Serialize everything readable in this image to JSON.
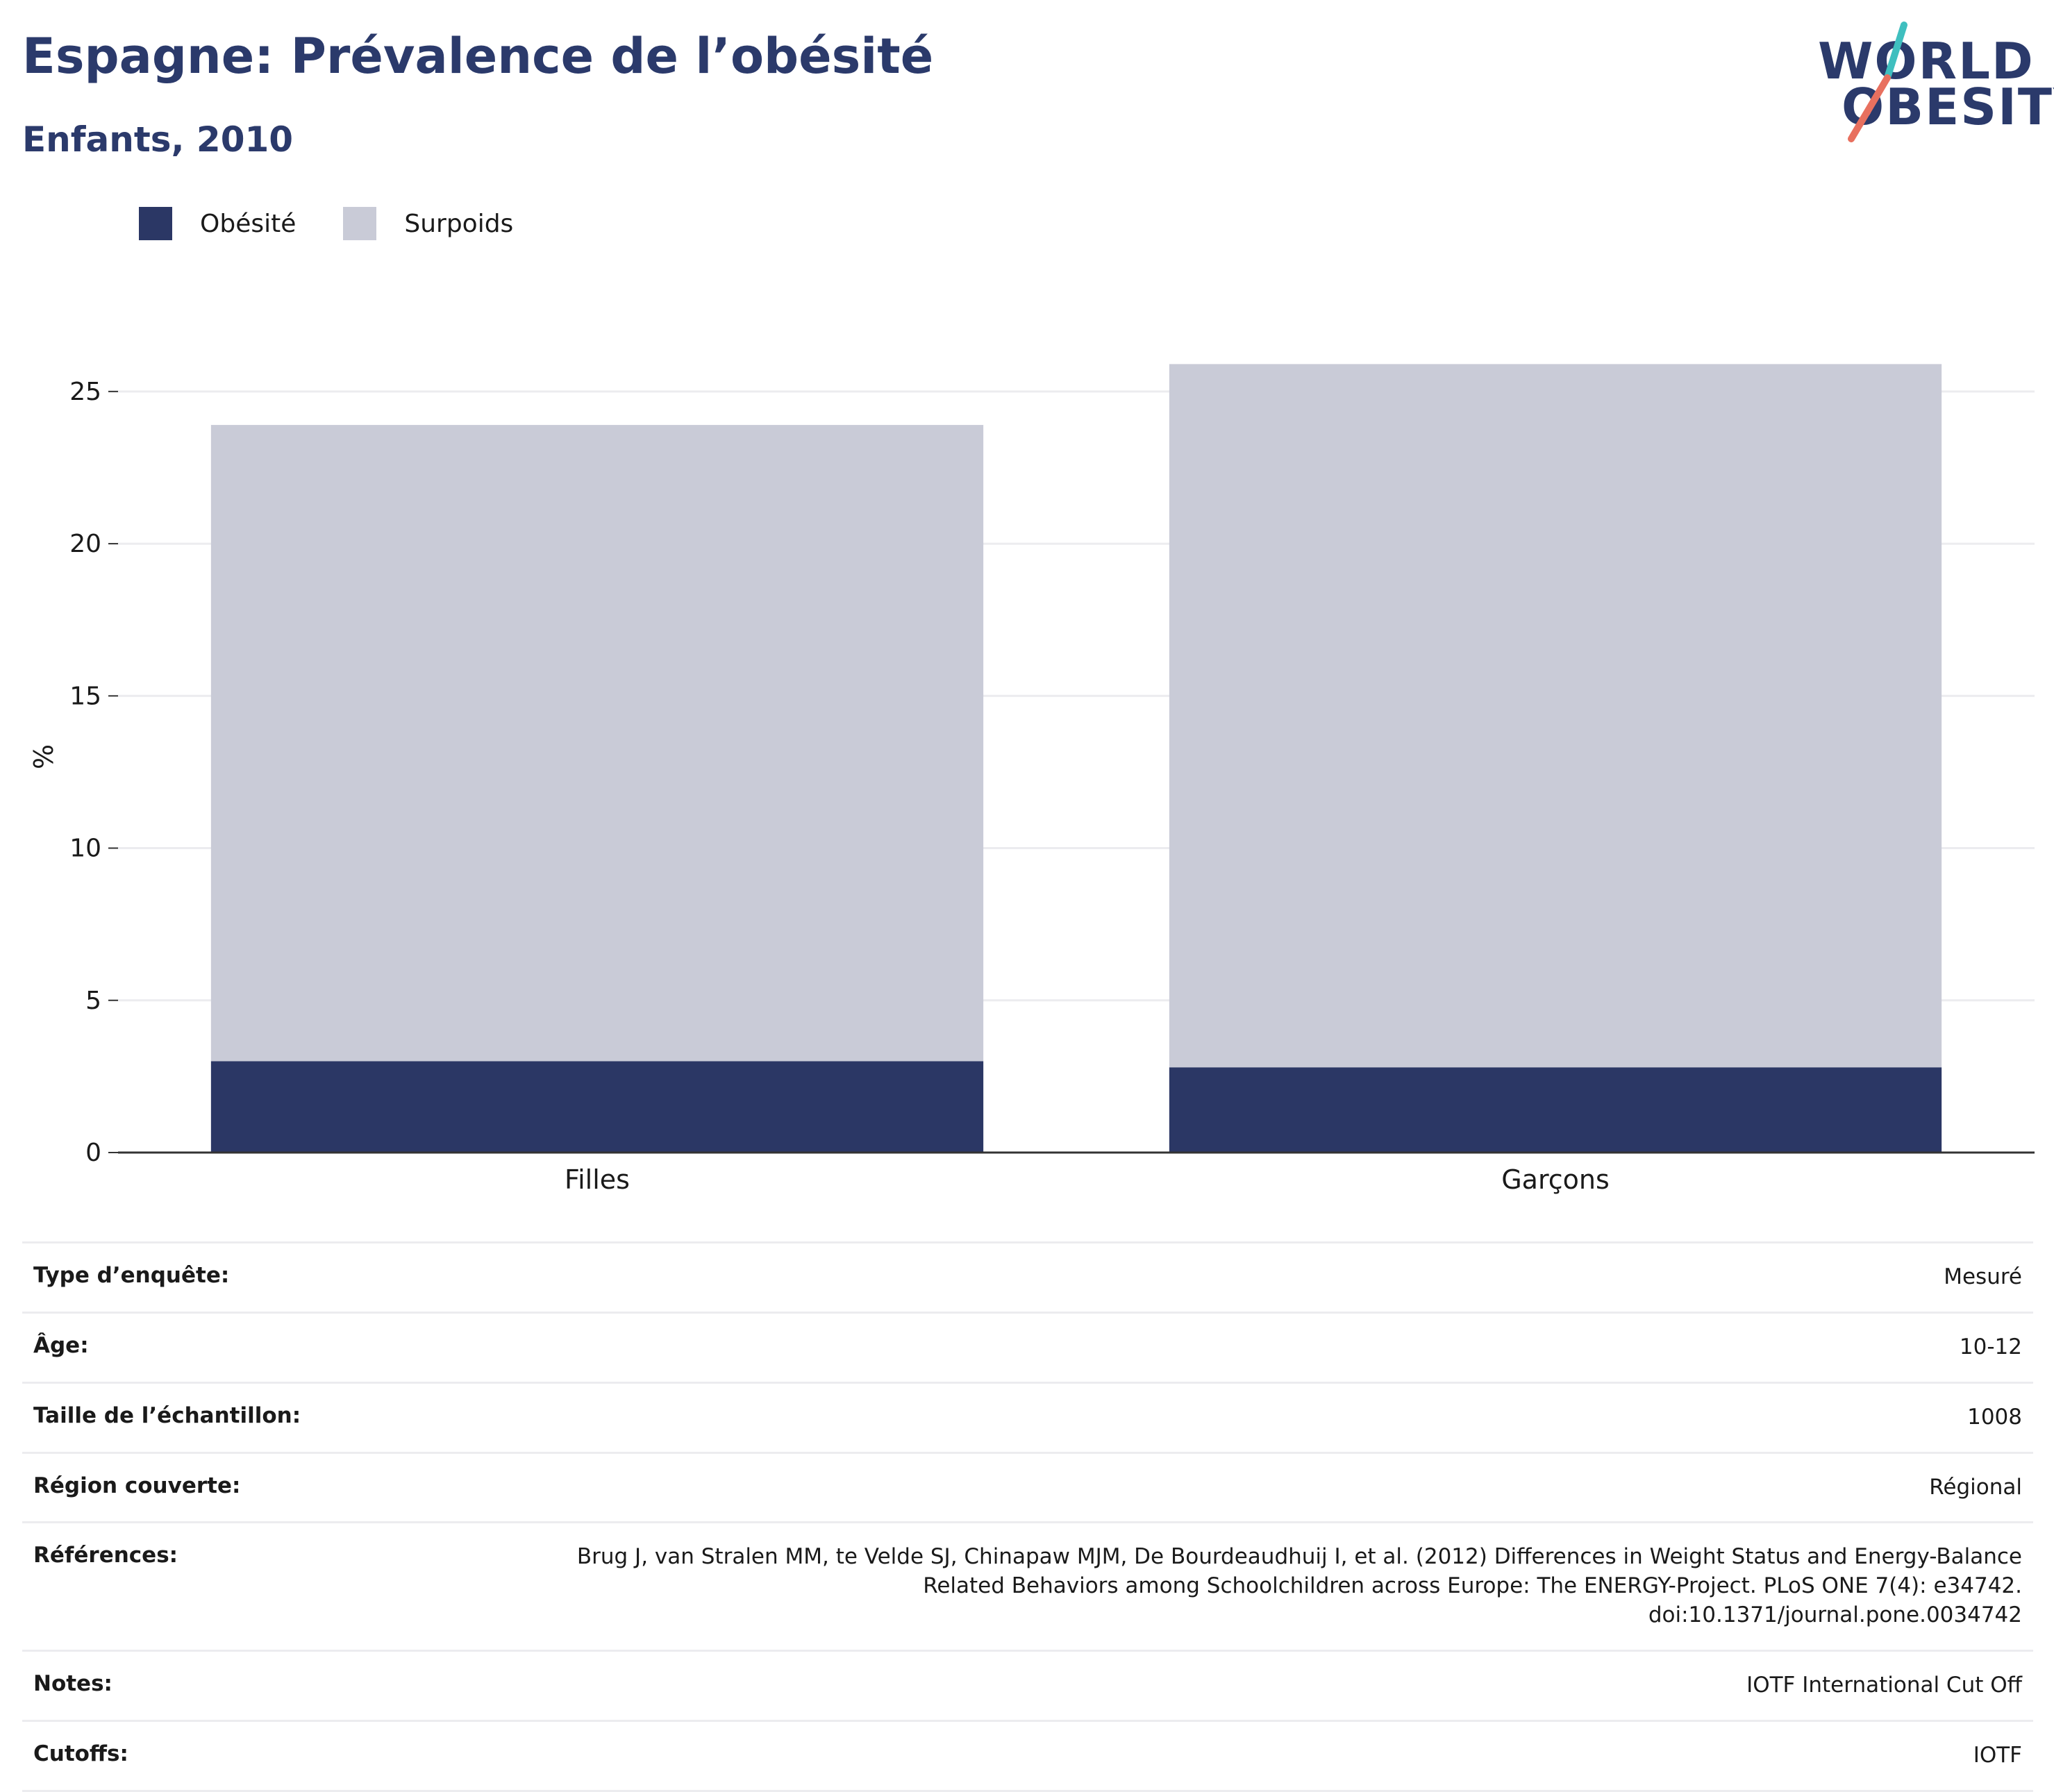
{
  "header": {
    "title": "Espagne: Prévalence de l’obésité",
    "subtitle": "Enfants, 2010"
  },
  "logo": {
    "line1": "WORLD",
    "line2": "OBESITY",
    "colors": {
      "text": "#2b3a6b",
      "slash_top": "#3fbfbf",
      "slash_bottom": "#e8705f"
    }
  },
  "colors": {
    "obesity": "#2b3765",
    "overweight": "#c9cbd7",
    "grid": "#ececef",
    "axis": "#333333"
  },
  "chart_data": {
    "type": "bar",
    "stacked": true,
    "categories": [
      "Filles",
      "Garçons"
    ],
    "series": [
      {
        "name": "Obésité",
        "values": [
          3.0,
          2.8
        ]
      },
      {
        "name": "Surpoids",
        "values": [
          20.9,
          23.1
        ]
      }
    ],
    "ylabel": "%",
    "ylim": [
      0,
      26
    ],
    "yticks": [
      0,
      5,
      10,
      15,
      20,
      25
    ],
    "grid": true,
    "legend": "top-left"
  },
  "details": [
    {
      "label": "Type d’enquête:",
      "value": [
        "Mesuré"
      ]
    },
    {
      "label": "Âge:",
      "value": [
        "10-12"
      ]
    },
    {
      "label": "Taille de l’échantillon:",
      "value": [
        "1008"
      ]
    },
    {
      "label": "Région couverte:",
      "value": [
        "Régional"
      ]
    },
    {
      "label": "Références:",
      "value": [
        "Brug J, van Stralen MM, te Velde SJ, Chinapaw MJM, De Bourdeaudhuij I, et al. (2012) Differences in Weight Status and Energy-Balance",
        "Related Behaviors among Schoolchildren across Europe: The ENERGY-Project. PLoS ONE 7(4): e34742.",
        "doi:10.1371/journal.pone.0034742"
      ]
    },
    {
      "label": "Notes:",
      "value": [
        "IOTF International Cut Off"
      ]
    },
    {
      "label": "Cutoffs:",
      "value": [
        "IOTF"
      ]
    }
  ]
}
